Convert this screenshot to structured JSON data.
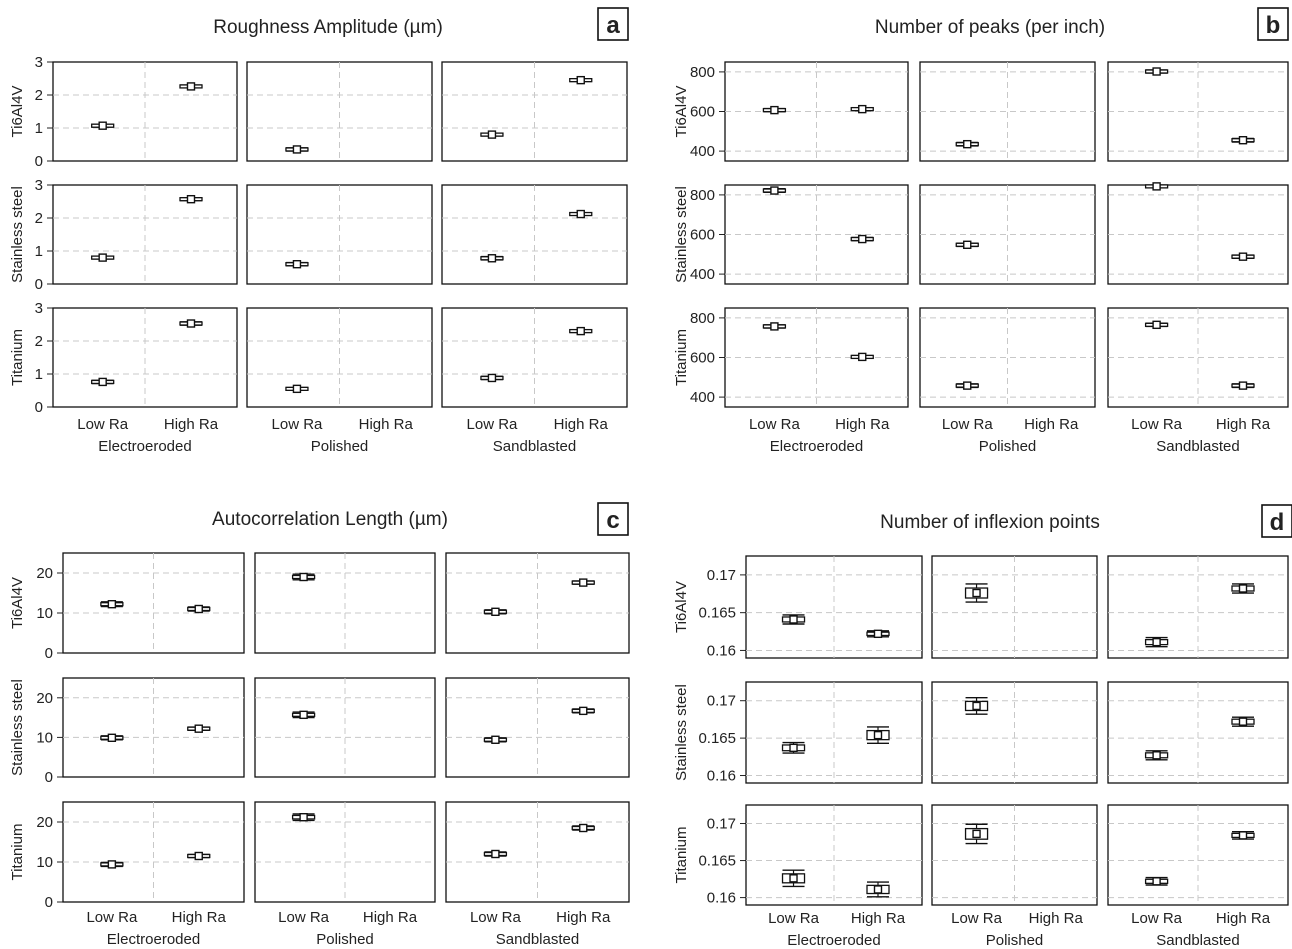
{
  "chart_data": [
    {
      "type": "box",
      "letter": "a",
      "title": "Roughness Amplitude (µm)",
      "rows": [
        "Ti6Al4V",
        "Stainless steel",
        "Titanium"
      ],
      "groups": [
        "Electroeroded",
        "Polished",
        "Sandblasted"
      ],
      "categories": [
        "Low Ra",
        "High Ra"
      ],
      "ylim": [
        0,
        3
      ],
      "yticks": [
        0,
        1,
        2,
        3
      ],
      "ytick_labels": [
        "0",
        "1",
        "2",
        "3"
      ],
      "grid": true,
      "series": [
        {
          "name": "Ti6Al4V",
          "values": [
            [
              1.07,
              2.26
            ],
            [
              0.35,
              null
            ],
            [
              0.8,
              2.45
            ]
          ],
          "spread": [
            [
              0.04,
              0.04
            ],
            [
              0.05,
              null
            ],
            [
              0.04,
              0.04
            ]
          ]
        },
        {
          "name": "Stainless steel",
          "values": [
            [
              0.8,
              2.57
            ],
            [
              0.6,
              null
            ],
            [
              0.78,
              2.12
            ]
          ],
          "spread": [
            [
              0.04,
              0.04
            ],
            [
              0.05,
              null
            ],
            [
              0.05,
              0.04
            ]
          ]
        },
        {
          "name": "Titanium",
          "values": [
            [
              0.76,
              2.53
            ],
            [
              0.55,
              null
            ],
            [
              0.88,
              2.3
            ]
          ],
          "spread": [
            [
              0.05,
              0.05
            ],
            [
              0.04,
              null
            ],
            [
              0.05,
              0.04
            ]
          ]
        }
      ]
    },
    {
      "type": "box",
      "letter": "b",
      "title": "Number of peaks (per inch)",
      "rows": [
        "Ti6Al4V",
        "Stainless steel",
        "Titanium"
      ],
      "groups": [
        "Electroeroded",
        "Polished",
        "Sandblasted"
      ],
      "categories": [
        "Low Ra",
        "High Ra"
      ],
      "ylim": [
        350,
        850
      ],
      "yticks": [
        400,
        600,
        800
      ],
      "ytick_labels": [
        "400",
        "600",
        "800"
      ],
      "grid": true,
      "series": [
        {
          "name": "Ti6Al4V",
          "values": [
            [
              607,
              612
            ],
            [
              435,
              null
            ],
            [
              802,
              455
            ]
          ],
          "spread": [
            [
              8,
              7
            ],
            [
              9,
              null
            ],
            [
              8,
              9
            ]
          ]
        },
        {
          "name": "Stainless steel",
          "values": [
            [
              822,
              577
            ],
            [
              548,
              null
            ],
            [
              843,
              488
            ]
          ],
          "spread": [
            [
              9,
              8
            ],
            [
              8,
              null
            ],
            [
              6,
              8
            ]
          ]
        },
        {
          "name": "Titanium",
          "values": [
            [
              757,
              603
            ],
            [
              458,
              null
            ],
            [
              765,
              458
            ]
          ],
          "spread": [
            [
              8,
              7
            ],
            [
              9,
              null
            ],
            [
              8,
              9
            ]
          ]
        }
      ]
    },
    {
      "type": "box",
      "letter": "c",
      "title": "Autocorrelation Length (µm)",
      "rows": [
        "Ti6Al4V",
        "Stainless steel",
        "Titanium"
      ],
      "groups": [
        "Electroeroded",
        "Polished",
        "Sandblasted"
      ],
      "categories": [
        "Low Ra",
        "High Ra"
      ],
      "ylim": [
        0,
        25
      ],
      "yticks": [
        0,
        10,
        20
      ],
      "ytick_labels": [
        "0",
        "10",
        "20"
      ],
      "grid": true,
      "series": [
        {
          "name": "Ti6Al4V",
          "values": [
            [
              12.2,
              11.0
            ],
            [
              19.0,
              null
            ],
            [
              10.3,
              17.6
            ]
          ],
          "spread": [
            [
              0.6,
              0.5
            ],
            [
              0.7,
              null
            ],
            [
              0.5,
              0.4
            ]
          ]
        },
        {
          "name": "Stainless steel",
          "values": [
            [
              9.9,
              12.2
            ],
            [
              15.7,
              null
            ],
            [
              9.4,
              16.7
            ]
          ],
          "spread": [
            [
              0.5,
              0.4
            ],
            [
              0.7,
              null
            ],
            [
              0.5,
              0.5
            ]
          ]
        },
        {
          "name": "Titanium",
          "values": [
            [
              9.4,
              11.5
            ],
            [
              21.2,
              null
            ],
            [
              12.0,
              18.5
            ]
          ],
          "spread": [
            [
              0.5,
              0.4
            ],
            [
              0.8,
              null
            ],
            [
              0.5,
              0.5
            ]
          ]
        }
      ]
    },
    {
      "type": "box",
      "letter": "d",
      "title": "Number of inflexion points",
      "rows": [
        "Ti6Al4V",
        "Stainless steel",
        "Titanium"
      ],
      "groups": [
        "Electroeroded",
        "Polished",
        "Sandblasted"
      ],
      "categories": [
        "Low Ra",
        "High Ra"
      ],
      "ylim": [
        0.159,
        0.1725
      ],
      "yticks": [
        0.16,
        0.165,
        0.17
      ],
      "ytick_labels": [
        "0.16",
        "0.165",
        "0.17"
      ],
      "grid": true,
      "series": [
        {
          "name": "Ti6Al4V",
          "values": [
            [
              0.1641,
              0.1622
            ],
            [
              0.1676,
              null
            ],
            [
              0.1611,
              0.1682
            ]
          ],
          "spread": [
            [
              0.0006,
              0.0004
            ],
            [
              0.0012,
              null
            ],
            [
              0.0006,
              0.0006
            ]
          ]
        },
        {
          "name": "Stainless steel",
          "values": [
            [
              0.1637,
              0.1654
            ],
            [
              0.1693,
              null
            ],
            [
              0.1627,
              0.1672
            ]
          ],
          "spread": [
            [
              0.0007,
              0.0011
            ],
            [
              0.0011,
              null
            ],
            [
              0.0006,
              0.0006
            ]
          ]
        },
        {
          "name": "Titanium",
          "values": [
            [
              0.1626,
              0.1611
            ],
            [
              0.1686,
              null
            ],
            [
              0.1622,
              0.1684
            ]
          ],
          "spread": [
            [
              0.0011,
              0.001
            ],
            [
              0.0013,
              null
            ],
            [
              0.0005,
              0.0005
            ]
          ]
        }
      ]
    }
  ]
}
